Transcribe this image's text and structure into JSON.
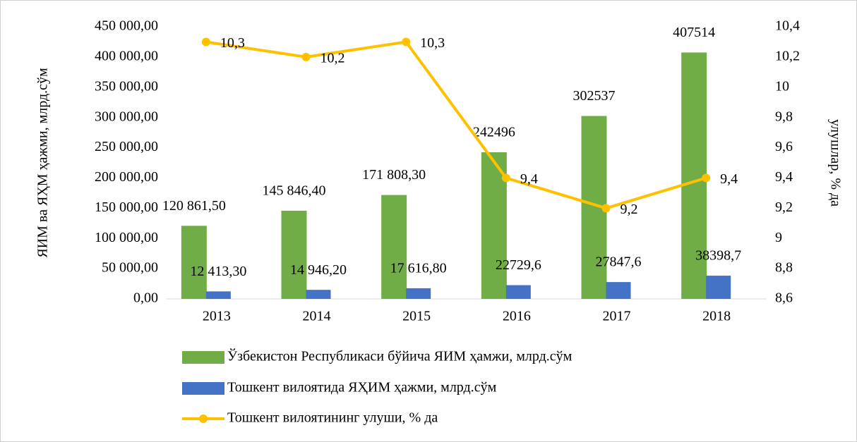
{
  "chart_data": {
    "type": "bar-line",
    "categories": [
      "2013",
      "2014",
      "2015",
      "2016",
      "2017",
      "2018"
    ],
    "series": [
      {
        "name": "Ўзбекистон Республикаси бўйича ЯИМ ҳамжи, млрд.сўм",
        "type": "bar",
        "color": "#70ad47",
        "values": [
          120861.5,
          145846.4,
          171808.3,
          242496,
          302537,
          407514
        ],
        "value_labels": [
          "120 861,50",
          "145 846,40",
          "171 808,30",
          "242496",
          "302537",
          "407514"
        ]
      },
      {
        "name": "Тошкент вилоятида ЯҲИМ ҳажми, млрд.сўм",
        "type": "bar",
        "color": "#4472c4",
        "values": [
          12413.3,
          14946.2,
          17616.8,
          22729.6,
          27847.6,
          38398.7
        ],
        "value_labels": [
          "12 413,30",
          "14 946,20",
          "17 616,80",
          "22729,6",
          "27847,6",
          "38398,7"
        ]
      },
      {
        "name": "Тошкент вилоятининг улуши, % да",
        "type": "line",
        "axis": "y2",
        "color": "#ffc000",
        "values": [
          10.3,
          10.2,
          10.3,
          9.4,
          9.2,
          9.4
        ],
        "value_labels": [
          "10,3",
          "10,2",
          "10,3",
          "9,4",
          "9,2",
          "9,4"
        ]
      }
    ],
    "y_label": "ЯИМ ва ЯҲМ ҳажми, млрд.сўм",
    "y2_label": "улушлар, % да",
    "ylim": [
      0,
      450000
    ],
    "yticks": [
      {
        "value": 0,
        "label": "0,00"
      },
      {
        "value": 50000,
        "label": "50 000,00"
      },
      {
        "value": 100000,
        "label": "100 000,00"
      },
      {
        "value": 150000,
        "label": "150 000,00"
      },
      {
        "value": 200000,
        "label": "200 000,00"
      },
      {
        "value": 250000,
        "label": "250 000,00"
      },
      {
        "value": 300000,
        "label": "300 000,00"
      },
      {
        "value": 350000,
        "label": "350 000,00"
      },
      {
        "value": 400000,
        "label": "400 000,00"
      },
      {
        "value": 450000,
        "label": "450 000,00"
      }
    ],
    "y2lim": [
      8.6,
      10.4
    ],
    "y2ticks": [
      {
        "value": 8.6,
        "label": "8,6"
      },
      {
        "value": 8.8,
        "label": "8,8"
      },
      9,
      {
        "value": 9.2,
        "label": "9,2"
      },
      {
        "value": 9.4,
        "label": "9,4"
      },
      {
        "value": 9.6,
        "label": "9,6"
      },
      {
        "value": 9.8,
        "label": "9,8"
      },
      10,
      {
        "value": 10.2,
        "label": "10,2"
      },
      {
        "value": 10.4,
        "label": "10,4"
      }
    ],
    "legend": "bottom"
  }
}
